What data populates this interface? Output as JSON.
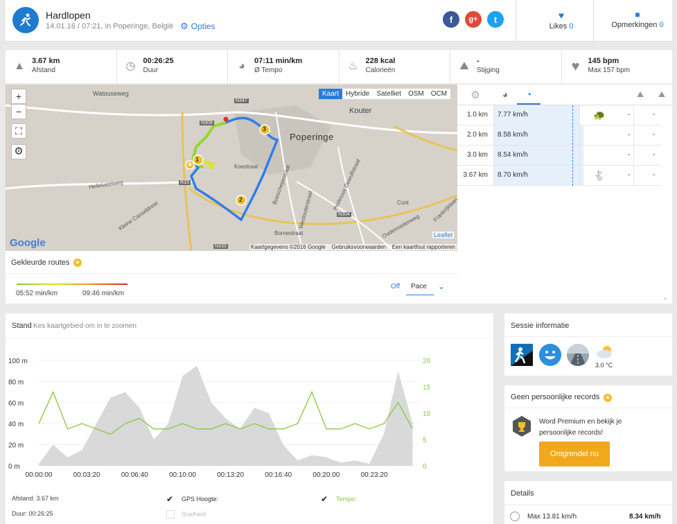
{
  "header": {
    "title": "Hardlopen",
    "subtitle": "14.01.16 / 07:21, in Poperinge, België",
    "options_label": "Opties",
    "likes_label": "Likes",
    "likes_count": "0",
    "comments_label": "Opmerkingen",
    "comments_count": "0",
    "social": [
      "f",
      "g+",
      "t"
    ]
  },
  "stats": [
    {
      "value": "3.67 km",
      "label": "Afstand",
      "icon": "road-icon"
    },
    {
      "value": "00:26:25",
      "label": "Duur",
      "icon": "clock-icon"
    },
    {
      "value": "07:11 min/km",
      "label": "Ø Tempo",
      "icon": "pace-icon"
    },
    {
      "value": "228 kcal",
      "label": "Calorieën",
      "icon": "flame-icon"
    },
    {
      "value": "-",
      "label": "Stijging",
      "icon": "elevation-icon"
    },
    {
      "value": "145 bpm",
      "label": "Max 157 bpm",
      "icon": "heart-icon"
    }
  ],
  "map": {
    "layers": [
      "Kaart",
      "Hybride",
      "Satelliet",
      "OSM",
      "OCM"
    ],
    "active_layer": "Kaart",
    "zoom_in": "+",
    "zoom_out": "−",
    "attribution": "Kaartgegevens ©2016 Google    Gebruiksvoorwaarden    Een kaartfout rapporteren",
    "leaflet": "Leaflet",
    "google": "Google",
    "labels": [
      "Watouseweg",
      "Poperinge",
      "Kouter",
      "Koestraat",
      "Helleketelweg",
      "Kleine Casseldreet",
      "Boeschepestraat",
      "Professor Dewulfstraat",
      "Westouterstraat",
      "Oudemoolenweg",
      "Frankrijklaan",
      "Bornestraat",
      "N308",
      "N347",
      "N333",
      "N304",
      "R33",
      "Cont"
    ],
    "markers": [
      "1",
      "2",
      "3"
    ]
  },
  "routes": {
    "title": "Gekleurde routes",
    "min_label": "05:52 min/km",
    "max_label": "09:46 min/km",
    "off_label": "Off",
    "pace_label": "Pace"
  },
  "splits": {
    "rows": [
      {
        "km": "1.0 km",
        "speed": "7.77 km/h",
        "speed_kmh": 7.77,
        "animal": "turtle-icon",
        "elev": "-",
        "desc": "-"
      },
      {
        "km": "2.0 km",
        "speed": "8.58 km/h",
        "speed_kmh": 8.58,
        "animal": "",
        "elev": "-",
        "desc": "-"
      },
      {
        "km": "3.0 km",
        "speed": "8.54 km/h",
        "speed_kmh": 8.54,
        "animal": "",
        "elev": "-",
        "desc": "-"
      },
      {
        "km": "3.67 km",
        "speed": "8.70 km/h",
        "speed_kmh": 8.7,
        "animal": "rabbit-icon",
        "elev": "-",
        "desc": "-"
      }
    ]
  },
  "chart": {
    "title": "Stand",
    "hint": "Kes kaartgebied om in te zoomen",
    "y_left_ticks": [
      "100 m",
      "80 m",
      "60 m",
      "40 m",
      "20 m",
      "0 m"
    ],
    "y_right_ticks": [
      "20",
      "15",
      "10",
      "5",
      "0"
    ],
    "x_ticks": [
      "00:00:00",
      "00:03:20",
      "00:06:40",
      "00:10:00",
      "00:13:20",
      "00:16:40",
      "00:20:00",
      "00:23:20"
    ],
    "distance": "Afstand: 3.67 km",
    "duration": "Duur: 00:26:25",
    "gps_label": "GPS Hoogte:",
    "tempo_label": "Tempo:",
    "speed_label": "Snelheid"
  },
  "chart_data": {
    "type": "area",
    "x_unit": "time",
    "ylim_left": [
      0,
      100
    ],
    "ylim_right": [
      0,
      20
    ],
    "series": [
      {
        "name": "GPS Hoogte",
        "color": "#d9d9d9",
        "axis": "left",
        "x": [
          "00:00:00",
          "00:01:00",
          "00:02:00",
          "00:03:00",
          "00:04:00",
          "00:05:00",
          "00:06:00",
          "00:07:00",
          "00:08:00",
          "00:09:00",
          "00:10:00",
          "00:11:00",
          "00:12:00",
          "00:13:00",
          "00:14:00",
          "00:15:00",
          "00:16:00",
          "00:17:00",
          "00:18:00",
          "00:19:00",
          "00:20:00",
          "00:21:00",
          "00:22:00",
          "00:23:00",
          "00:24:00",
          "00:25:00",
          "00:26:00"
        ],
        "values": [
          2,
          20,
          8,
          15,
          40,
          65,
          70,
          55,
          25,
          40,
          85,
          95,
          60,
          45,
          35,
          55,
          50,
          20,
          5,
          10,
          8,
          3,
          5,
          2,
          30,
          90,
          40
        ]
      },
      {
        "name": "Tempo",
        "color": "#8cc63f",
        "axis": "right",
        "x": [
          "00:00:00",
          "00:01:00",
          "00:02:00",
          "00:03:00",
          "00:04:00",
          "00:05:00",
          "00:06:00",
          "00:07:00",
          "00:08:00",
          "00:09:00",
          "00:10:00",
          "00:11:00",
          "00:12:00",
          "00:13:00",
          "00:14:00",
          "00:15:00",
          "00:16:00",
          "00:17:00",
          "00:18:00",
          "00:19:00",
          "00:20:00",
          "00:21:00",
          "00:22:00",
          "00:23:00",
          "00:24:00",
          "00:25:00",
          "00:26:00"
        ],
        "values": [
          8,
          14,
          7,
          8,
          7,
          6,
          8,
          9,
          7,
          7,
          8,
          7,
          7,
          8,
          7,
          8,
          7,
          7,
          8,
          14,
          7,
          7,
          8,
          7,
          8,
          12,
          7
        ]
      }
    ]
  },
  "session": {
    "title": "Sessie informatie",
    "temperature": "3.0 °C"
  },
  "records": {
    "title": "Geen persoonlijke records",
    "text": "Word Premium en bekijk je persoonlijke records!",
    "button": "Ontgrendel nu"
  },
  "details": {
    "title": "Details",
    "row_label": "Max 13.81 km/h",
    "row_value": "8.34 km/h"
  },
  "colors": {
    "accent": "#2b7bd6",
    "orange": "#f2a81d",
    "green": "#8cc63f"
  }
}
